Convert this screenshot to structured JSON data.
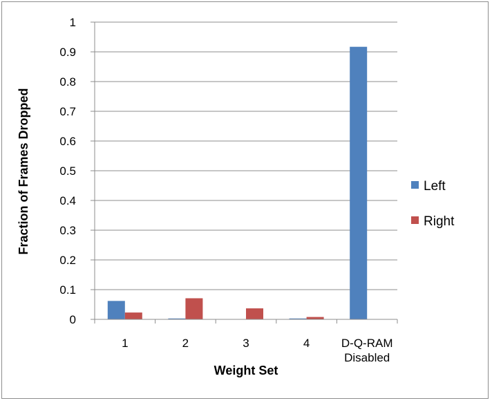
{
  "chart_data": {
    "type": "bar",
    "title": "",
    "xlabel": "Weight Set",
    "ylabel": "Fraction of Frames Dropped",
    "categories": [
      [
        "1"
      ],
      [
        "2"
      ],
      [
        "3"
      ],
      [
        "4"
      ],
      [
        "D-Q-RAM",
        "Disabled"
      ]
    ],
    "series": [
      {
        "name": "Left",
        "color": "#4f81bd",
        "values": [
          0.062,
          0.003,
          0.0,
          0.003,
          0.917
        ]
      },
      {
        "name": "Right",
        "color": "#c0504d",
        "values": [
          0.023,
          0.071,
          0.037,
          0.008,
          0.0
        ]
      }
    ],
    "ylim": [
      0,
      1
    ],
    "yticks": [
      "0",
      "0.1",
      "0.2",
      "0.3",
      "0.4",
      "0.5",
      "0.6",
      "0.7",
      "0.8",
      "0.9",
      "1"
    ],
    "grid": true,
    "legend_position": "right"
  }
}
